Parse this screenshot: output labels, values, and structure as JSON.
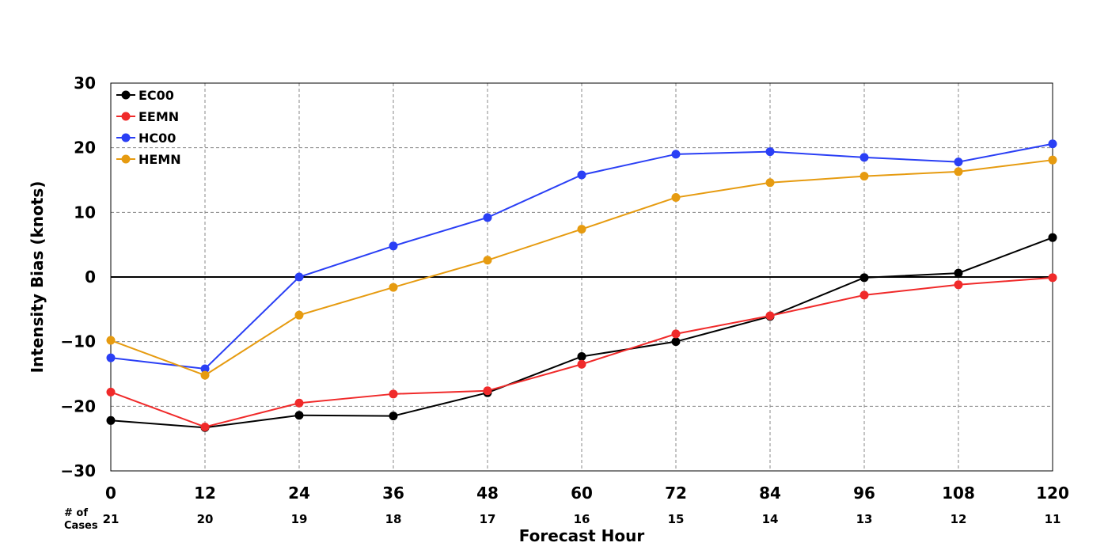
{
  "chart_data": {
    "type": "line",
    "xlabel": "Forecast Hour",
    "ylabel": "Intensity Bias (knots)",
    "x": [
      0,
      12,
      24,
      36,
      48,
      60,
      72,
      84,
      96,
      108,
      120
    ],
    "xlim": [
      0,
      120
    ],
    "ylim": [
      -30,
      30
    ],
    "yticks": [
      -30,
      -20,
      -10,
      0,
      10,
      20,
      30
    ],
    "ytick_labels": [
      "−30",
      "−20",
      "−10",
      "0",
      "10",
      "20",
      "30"
    ],
    "grid": true,
    "legend_position": "top-left",
    "cases_label": "# of\nCases",
    "cases": [
      21,
      20,
      19,
      18,
      17,
      16,
      15,
      14,
      13,
      12,
      11
    ],
    "series": [
      {
        "name": "EC00",
        "color": "#000000",
        "values": [
          -22.2,
          -23.3,
          -21.4,
          -21.5,
          -17.9,
          -12.3,
          -10.0,
          -6.1,
          -0.1,
          0.6,
          6.1
        ]
      },
      {
        "name": "EEMN",
        "color": "#f02a2a",
        "values": [
          -17.8,
          -23.2,
          -19.5,
          -18.1,
          -17.6,
          -13.5,
          -8.8,
          -6.0,
          -2.8,
          -1.2,
          -0.1
        ]
      },
      {
        "name": "HC00",
        "color": "#2a3ff5",
        "values": [
          -12.5,
          -14.2,
          0.0,
          4.8,
          9.2,
          15.8,
          19.0,
          19.4,
          18.5,
          17.8,
          20.6
        ]
      },
      {
        "name": "HEMN",
        "color": "#e69b10",
        "values": [
          -9.8,
          -15.2,
          -5.9,
          -1.6,
          2.6,
          7.4,
          12.3,
          14.6,
          15.6,
          16.3,
          18.1
        ]
      }
    ]
  }
}
